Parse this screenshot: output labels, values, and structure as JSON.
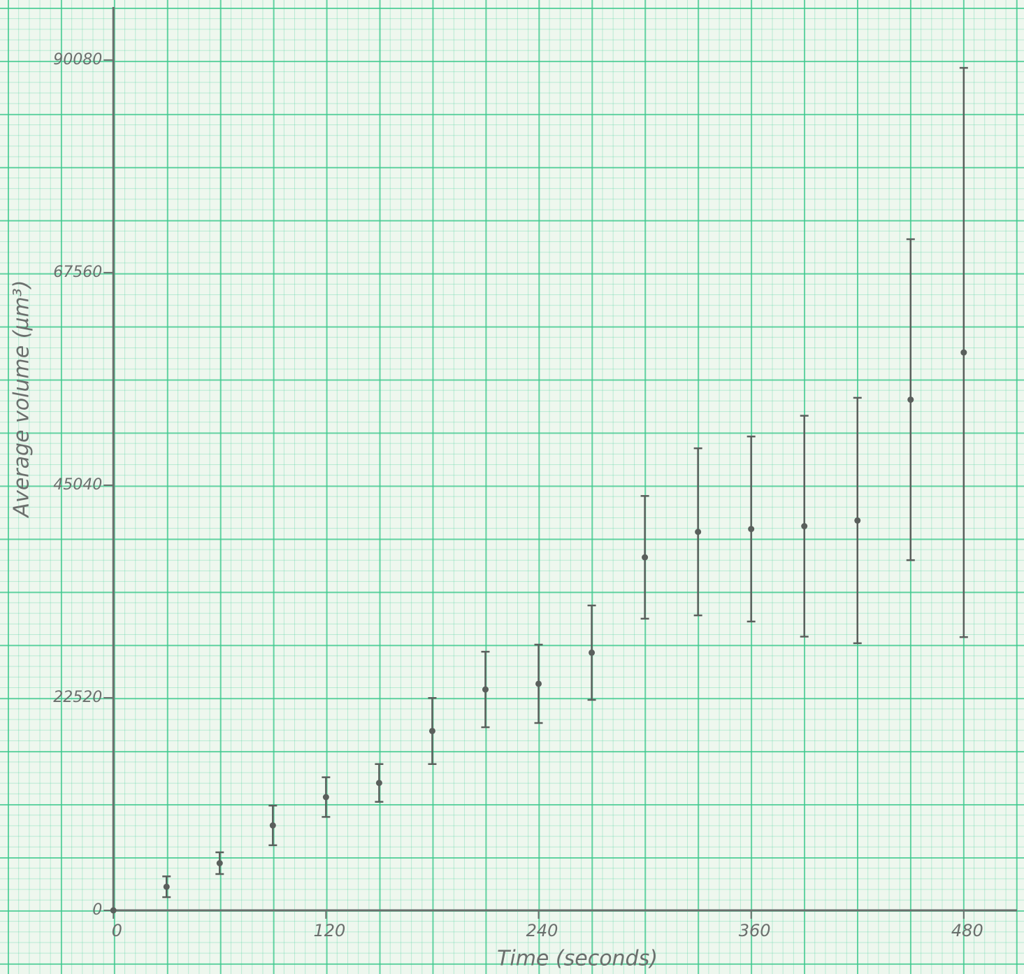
{
  "chart_data": {
    "type": "scatter",
    "x_label": "Time (seconds)",
    "y_label": "Average volume (µm³)",
    "x": [
      0,
      30,
      60,
      90,
      120,
      150,
      180,
      210,
      240,
      270,
      300,
      330,
      360,
      390,
      420,
      450,
      480
    ],
    "series": [
      {
        "color": "#5a5f5c",
        "values": [
          0,
          2500,
          5000,
          9000,
          12000,
          13500,
          19000,
          23400,
          24000,
          27300,
          37400,
          40100,
          40400,
          40700,
          41300,
          54100,
          59100
        ],
        "errors": [
          0,
          1100,
          1150,
          2100,
          2100,
          2000,
          3500,
          4000,
          4150,
          5000,
          6500,
          8850,
          9800,
          11700,
          13000,
          17000,
          30150
        ]
      }
    ],
    "xlim": [
      -64,
      514
    ],
    "ylim": [
      -6740,
      96440
    ],
    "xticks": [
      0,
      120,
      240,
      360,
      480
    ],
    "yticks": [
      0,
      22520,
      45040,
      67560,
      90080
    ],
    "axis_color": "#6b6f6d"
  }
}
